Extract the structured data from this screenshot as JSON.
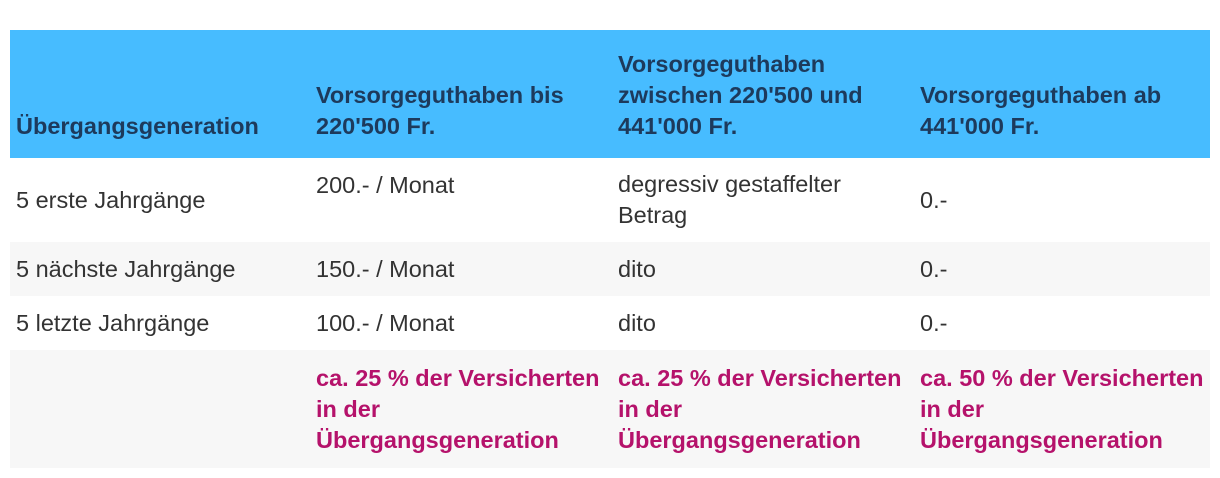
{
  "table": {
    "headers": [
      "Übergangsgeneration",
      "Vorsorgeguthaben bis 220'500 Fr.",
      "Vorsorgeguthaben zwischen 220'500 und 441'000 Fr.",
      "Vorsorgeguthaben ab 441'000 Fr."
    ],
    "rows": [
      [
        "5 erste Jahrgänge",
        "200.- / Monat",
        "degressiv gestaffelter Betrag",
        "0.-"
      ],
      [
        "5 nächste Jahrgänge",
        "150.- / Monat",
        "dito",
        "0.-"
      ],
      [
        "5 letzte Jahrgänge",
        "100.- / Monat",
        "dito",
        "0.-"
      ],
      [
        "",
        "ca. 25 % der Versicherten in der Übergangsgeneration",
        "ca. 25 % der Versicherten in der Übergangsgeneration",
        "ca. 50 % der Versicherten in der Übergangsgeneration"
      ]
    ]
  },
  "colors": {
    "header_bg": "#47bcff",
    "header_text": "#1d3a5c",
    "highlight_text": "#b5126b",
    "row_shade": "#f7f7f7"
  }
}
